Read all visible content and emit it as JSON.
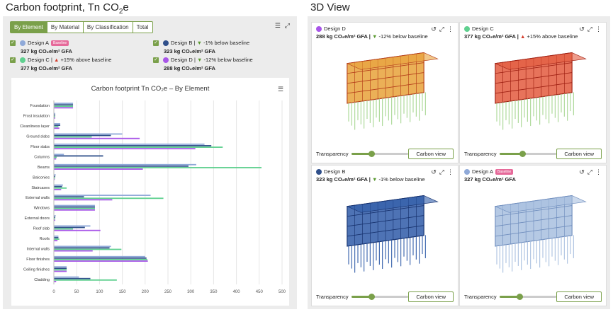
{
  "left": {
    "title": "Carbon footprint, Tn CO",
    "title_sub": "2",
    "title_suffix": "e",
    "tabs": [
      "By Element",
      "By Material",
      "By Classification",
      "Total"
    ],
    "active_tab": "By Element",
    "designs": [
      {
        "name": "Design A",
        "color": "#8fa9d8",
        "badge": "Baseline",
        "value": "327 kg CO₂e/m² GFA",
        "delta": ""
      },
      {
        "name": "Design B",
        "color": "#2f4f8a",
        "badge": "",
        "value": "323 kg CO₂e/m² GFA",
        "delta": "-1% below baseline",
        "dir": "down"
      },
      {
        "name": "Design C",
        "color": "#5fd08f",
        "badge": "",
        "value": "377 kg CO₂e/m² GFA",
        "delta": "+15% above baseline",
        "dir": "up"
      },
      {
        "name": "Design D",
        "color": "#a855e8",
        "badge": "",
        "value": "288 kg CO₂e/m² GFA",
        "delta": "-12% below baseline",
        "dir": "down"
      }
    ]
  },
  "chart_data": {
    "type": "bar",
    "orientation": "horizontal",
    "title": "Carbon footprint Tn CO₂e – By Element",
    "categories": [
      "Foundation",
      "Frost insulation",
      "Cleanliness layer",
      "Ground slabs",
      "Floor slabs",
      "Columns",
      "Beams",
      "Balconies",
      "Staircases",
      "External walls",
      "Windows",
      "External doors",
      "Roof slab",
      "Roofs",
      "Internal walls",
      "Floor finishes",
      "Ceiling finishes",
      "Cladding"
    ],
    "series": [
      {
        "name": "Design A",
        "color": "#8fa9d8",
        "values": [
          42,
          3,
          14,
          150,
          330,
          22,
          312,
          4,
          20,
          212,
          90,
          4,
          80,
          10,
          125,
          200,
          28,
          55
        ]
      },
      {
        "name": "Design B",
        "color": "#2f4f8a",
        "values": [
          42,
          3,
          14,
          125,
          345,
          108,
          295,
          3,
          18,
          66,
          90,
          3,
          68,
          10,
          122,
          203,
          28,
          80
        ]
      },
      {
        "name": "Design C",
        "color": "#5fd08f",
        "values": [
          42,
          3,
          10,
          83,
          370,
          6,
          455,
          3,
          28,
          240,
          90,
          3,
          42,
          12,
          148,
          205,
          28,
          138
        ]
      },
      {
        "name": "Design D",
        "color": "#a855e8",
        "values": [
          42,
          3,
          12,
          188,
          310,
          5,
          195,
          2,
          16,
          128,
          90,
          3,
          102,
          8,
          85,
          206,
          28,
          5
        ]
      }
    ],
    "xticks": [
      0,
      50,
      100,
      150,
      200,
      250,
      300,
      350,
      400,
      450,
      500
    ],
    "xlim": [
      0,
      500
    ]
  },
  "right": {
    "title": "3D View",
    "views": [
      {
        "name": "Design D",
        "color": "#a855e8",
        "value": "288 kg CO₂e/m² GFA",
        "delta": "-12% below baseline",
        "dir": "down",
        "badge": "",
        "slider": 0.35
      },
      {
        "name": "Design C",
        "color": "#5fd08f",
        "value": "377 kg CO₂e/m² GFA",
        "delta": "+15% above baseline",
        "dir": "up",
        "badge": "",
        "slider": 0.4
      },
      {
        "name": "Design B",
        "color": "#2f4f8a",
        "value": "323 kg CO₂e/m² GFA",
        "delta": "-1% below baseline",
        "dir": "down",
        "badge": "",
        "slider": 0.35
      },
      {
        "name": "Design A",
        "color": "#8fa9d8",
        "value": "327 kg CO₂e/m² GFA",
        "delta": "",
        "dir": "",
        "badge": "Baseline",
        "slider": 0.35
      }
    ],
    "transparency_label": "Transparency",
    "carbon_view_label": "Carbon view"
  }
}
